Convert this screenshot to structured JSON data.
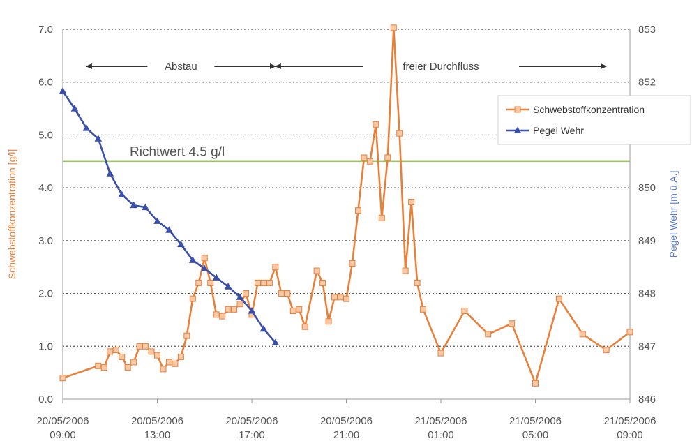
{
  "chart_data": {
    "type": "line",
    "y_left": {
      "label": "Schwebstoffkonzentration [g/l]",
      "min": 0,
      "max": 7,
      "ticks": [
        "0.0",
        "1.0",
        "2.0",
        "3.0",
        "4.0",
        "5.0",
        "6.0",
        "7.0"
      ],
      "color": "#e8803a"
    },
    "y_right": {
      "label": "Pegel Wehr [m ü.A.]",
      "min": 846,
      "max": 853,
      "ticks": [
        "846",
        "847",
        "848",
        "849",
        "850",
        "851",
        "852",
        "853"
      ],
      "color": "#5b7bd0"
    },
    "x": {
      "min": 0,
      "max": 24,
      "ticks": [
        {
          "t": 0,
          "date": "20/05/2006",
          "time": "09:00"
        },
        {
          "t": 4,
          "date": "20/05/2006",
          "time": "13:00"
        },
        {
          "t": 8,
          "date": "20/05/2006",
          "time": "17:00"
        },
        {
          "t": 12,
          "date": "20/05/2006",
          "time": "21:00"
        },
        {
          "t": 16,
          "date": "21/05/2006",
          "time": "01:00"
        },
        {
          "t": 20,
          "date": "21/05/2006",
          "time": "05:00"
        },
        {
          "t": 24,
          "date": "21/05/2006",
          "time": "09:00"
        }
      ]
    },
    "grid": true,
    "legend_position": "right",
    "series": [
      {
        "name": "Schwebstoffkonzentration",
        "axis": "left",
        "color": "#e8803a",
        "marker": "square",
        "points": [
          [
            0.0,
            0.4
          ],
          [
            1.5,
            0.63
          ],
          [
            1.75,
            0.6
          ],
          [
            2.0,
            0.9
          ],
          [
            2.25,
            0.93
          ],
          [
            2.5,
            0.8
          ],
          [
            2.75,
            0.6
          ],
          [
            3.0,
            0.7
          ],
          [
            3.25,
            1.0
          ],
          [
            3.5,
            1.0
          ],
          [
            3.75,
            0.9
          ],
          [
            4.0,
            0.83
          ],
          [
            4.25,
            0.57
          ],
          [
            4.5,
            0.7
          ],
          [
            4.75,
            0.67
          ],
          [
            5.0,
            0.8
          ],
          [
            5.25,
            1.2
          ],
          [
            5.5,
            1.9
          ],
          [
            5.75,
            2.2
          ],
          [
            6.0,
            2.67
          ],
          [
            6.25,
            2.2
          ],
          [
            6.5,
            1.6
          ],
          [
            6.75,
            1.57
          ],
          [
            7.0,
            1.7
          ],
          [
            7.25,
            1.7
          ],
          [
            7.5,
            1.8
          ],
          [
            7.75,
            2.0
          ],
          [
            8.0,
            1.6
          ],
          [
            8.25,
            2.2
          ],
          [
            8.5,
            2.2
          ],
          [
            8.75,
            2.2
          ],
          [
            9.0,
            2.5
          ],
          [
            9.25,
            2.0
          ],
          [
            9.5,
            2.0
          ],
          [
            9.75,
            1.67
          ],
          [
            10.0,
            1.7
          ],
          [
            10.25,
            1.37
          ],
          [
            10.75,
            2.43
          ],
          [
            11.0,
            2.2
          ],
          [
            11.25,
            1.47
          ],
          [
            11.5,
            1.93
          ],
          [
            11.75,
            1.93
          ],
          [
            12.0,
            1.9
          ],
          [
            12.25,
            2.57
          ],
          [
            12.5,
            3.57
          ],
          [
            12.75,
            4.57
          ],
          [
            13.0,
            4.5
          ],
          [
            13.25,
            5.2
          ],
          [
            13.5,
            3.43
          ],
          [
            13.75,
            4.57
          ],
          [
            14.0,
            7.03
          ],
          [
            14.25,
            5.03
          ],
          [
            14.5,
            2.43
          ],
          [
            14.75,
            3.73
          ],
          [
            15.0,
            2.2
          ],
          [
            15.25,
            1.7
          ],
          [
            16.0,
            0.87
          ],
          [
            17.0,
            1.67
          ],
          [
            18.0,
            1.23
          ],
          [
            19.0,
            1.43
          ],
          [
            20.0,
            0.3
          ],
          [
            21.0,
            1.9
          ],
          [
            22.0,
            1.23
          ],
          [
            23.0,
            0.93
          ],
          [
            24.0,
            1.27
          ]
        ]
      },
      {
        "name": "Pegel Wehr",
        "axis": "right",
        "color": "#3a4fa8",
        "marker": "triangle",
        "points": [
          [
            0.0,
            851.83
          ],
          [
            0.5,
            851.5
          ],
          [
            1.0,
            851.13
          ],
          [
            1.5,
            850.93
          ],
          [
            2.0,
            850.27
          ],
          [
            2.5,
            849.87
          ],
          [
            3.0,
            849.67
          ],
          [
            3.5,
            849.63
          ],
          [
            4.0,
            849.37
          ],
          [
            4.5,
            849.2
          ],
          [
            5.0,
            848.93
          ],
          [
            5.5,
            848.63
          ],
          [
            6.0,
            848.47
          ],
          [
            6.5,
            848.3
          ],
          [
            7.0,
            848.13
          ],
          [
            7.5,
            847.93
          ],
          [
            8.0,
            847.67
          ],
          [
            8.5,
            847.33
          ],
          [
            9.0,
            847.07
          ]
        ]
      }
    ],
    "reference_line": {
      "value": 4.5,
      "axis": "left",
      "label": "Richtwert 4.5 g/l",
      "color": "#9bc85a"
    },
    "annotations": [
      {
        "text": "Abstau",
        "x_from": 1,
        "x_to": 9
      },
      {
        "text": "freier Durchfluss",
        "x_from": 9,
        "x_to": 23
      }
    ]
  }
}
